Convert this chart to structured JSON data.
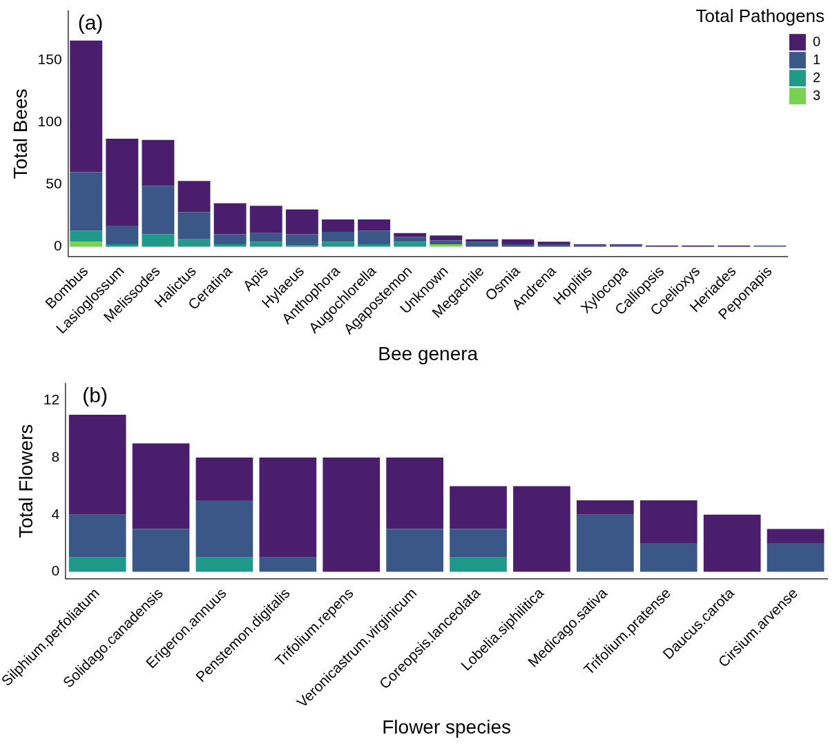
{
  "chart_data": [
    {
      "type": "bar",
      "stacked": true,
      "xlabel": "Bee genera",
      "ylabel": "Total Bees",
      "legend_title": "Total Pathogens",
      "legend": "top right",
      "grid": false,
      "annotations": [
        "(a)"
      ],
      "categories": [
        "Bombus",
        "Lasioglossum",
        "Melissodes",
        "Halictus",
        "Ceratina",
        "Apis",
        "Hylaeus",
        "Anthophora",
        "Augochlorella",
        "Agapostemon",
        "Unknown",
        "Megachile",
        "Osmia",
        "Andrena",
        "Hoplitis",
        "Xylocopa",
        "Calliopsis",
        "Coelioxys",
        "Heriades",
        "Peponapis"
      ],
      "ylim": [
        -8,
        190
      ],
      "yticks": [
        0,
        50,
        100,
        150
      ],
      "series": [
        {
          "name": "3",
          "color": "#7ad151",
          "values": [
            4,
            0,
            0,
            0,
            0,
            0,
            0,
            0,
            0,
            0,
            2,
            0,
            0,
            0,
            0,
            0,
            0,
            0,
            0,
            0
          ]
        },
        {
          "name": "2",
          "color": "#21998a",
          "values": [
            9,
            2,
            10,
            6,
            2,
            4,
            1,
            4,
            2,
            4,
            0,
            0,
            0,
            0,
            0,
            0,
            0,
            0,
            0,
            0
          ]
        },
        {
          "name": "1",
          "color": "#3a5788",
          "values": [
            47,
            15,
            39,
            22,
            8,
            7,
            9,
            8,
            11,
            4,
            3,
            4,
            2,
            2,
            1,
            1,
            0,
            0,
            0,
            1
          ]
        },
        {
          "name": "0",
          "color": "#4a1e6d",
          "values": [
            106,
            70,
            37,
            25,
            25,
            22,
            20,
            10,
            9,
            3,
            4,
            2,
            4,
            2,
            1,
            1,
            1,
            1,
            1,
            0
          ]
        }
      ]
    },
    {
      "type": "bar",
      "stacked": true,
      "xlabel": "Flower species",
      "ylabel": "Total Flowers",
      "grid": false,
      "annotations": [
        "(b)"
      ],
      "categories": [
        "Silphium.perfoliatum",
        "Solidago.canadensis",
        "Erigeron.annuus",
        "Penstemon.digitalis",
        "Trifolium.repens",
        "Veronicastrum.virginicum",
        "Coreopsis.lanceolata",
        "Lobelia.siphilitica",
        "Medicago.sativa",
        "Trifolium.pratense",
        "Daucus.carota",
        "Cirsium.arvense"
      ],
      "ylim": [
        -0.5,
        13.2
      ],
      "yticks": [
        0,
        4,
        8,
        12
      ],
      "series": [
        {
          "color": "#21998a",
          "values": [
            1,
            0,
            1,
            0,
            0,
            0,
            1,
            0,
            0,
            0,
            0,
            0
          ]
        },
        {
          "color": "#3a5788",
          "values": [
            3,
            3,
            4,
            1,
            0,
            3,
            2,
            0,
            4,
            2,
            0,
            2
          ]
        },
        {
          "color": "#4a1e6d",
          "values": [
            7,
            6,
            3,
            7,
            8,
            5,
            3,
            6,
            1,
            3,
            4,
            1
          ]
        }
      ]
    }
  ]
}
